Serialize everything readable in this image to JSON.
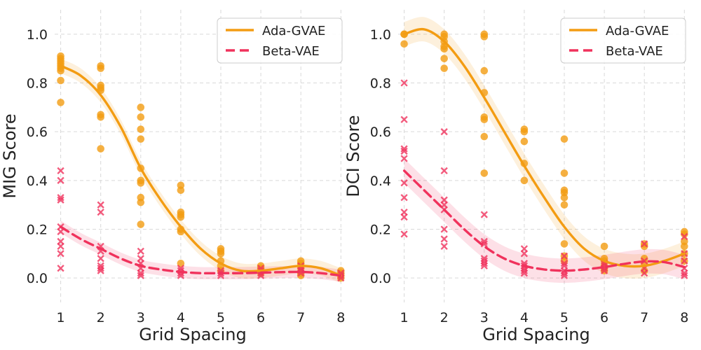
{
  "colors": {
    "ada": "#f39c12",
    "beta": "#f0325c"
  },
  "chart_data": [
    {
      "type": "scatter",
      "title": "",
      "xlabel": "Grid Spacing",
      "ylabel": "MIG Score",
      "xlim": [
        0.85,
        8.1
      ],
      "ylim": [
        -0.1,
        1.1
      ],
      "xticks": [
        1,
        2,
        3,
        4,
        5,
        6,
        7,
        8
      ],
      "yticks": [
        "0.0",
        "0.2",
        "0.4",
        "0.6",
        "0.8",
        "1.0"
      ],
      "grid": true,
      "legend": {
        "position": "top-right",
        "entries": [
          "Ada-GVAE",
          "Beta-VAE"
        ]
      },
      "series": [
        {
          "name": "Ada-GVAE",
          "marker": "circle",
          "points": [
            [
              1,
              0.91
            ],
            [
              1,
              0.9
            ],
            [
              1,
              0.89
            ],
            [
              1,
              0.88
            ],
            [
              1,
              0.87
            ],
            [
              1,
              0.86
            ],
            [
              1,
              0.85
            ],
            [
              1,
              0.81
            ],
            [
              1,
              0.72
            ],
            [
              2,
              0.87
            ],
            [
              2,
              0.86
            ],
            [
              2,
              0.79
            ],
            [
              2,
              0.78
            ],
            [
              2,
              0.77
            ],
            [
              2,
              0.67
            ],
            [
              2,
              0.66
            ],
            [
              2,
              0.53
            ],
            [
              3,
              0.7
            ],
            [
              3,
              0.66
            ],
            [
              3,
              0.61
            ],
            [
              3,
              0.57
            ],
            [
              3,
              0.45
            ],
            [
              3,
              0.4
            ],
            [
              3,
              0.39
            ],
            [
              3,
              0.33
            ],
            [
              3,
              0.31
            ],
            [
              3,
              0.22
            ],
            [
              4,
              0.38
            ],
            [
              4,
              0.36
            ],
            [
              4,
              0.27
            ],
            [
              4,
              0.26
            ],
            [
              4,
              0.25
            ],
            [
              4,
              0.2
            ],
            [
              4,
              0.19
            ],
            [
              4,
              0.06
            ],
            [
              5,
              0.12
            ],
            [
              5,
              0.11
            ],
            [
              5,
              0.1
            ],
            [
              5,
              0.07
            ],
            [
              5,
              0.05
            ],
            [
              5,
              0.03
            ],
            [
              6,
              0.05
            ],
            [
              6,
              0.04
            ],
            [
              6,
              0.03
            ],
            [
              6,
              0.02
            ],
            [
              7,
              0.07
            ],
            [
              7,
              0.06
            ],
            [
              7,
              0.05
            ],
            [
              7,
              0.04
            ],
            [
              7,
              0.02
            ],
            [
              7,
              0.01
            ],
            [
              8,
              0.03
            ],
            [
              8,
              0.02
            ],
            [
              8,
              0.01
            ],
            [
              8,
              0.0
            ]
          ],
          "fit": [
            [
              1,
              0.87
            ],
            [
              1.5,
              0.83
            ],
            [
              2,
              0.75
            ],
            [
              2.5,
              0.62
            ],
            [
              3,
              0.45
            ],
            [
              3.5,
              0.32
            ],
            [
              4,
              0.21
            ],
            [
              4.5,
              0.12
            ],
            [
              5,
              0.06
            ],
            [
              5.5,
              0.03
            ],
            [
              6,
              0.03
            ],
            [
              6.5,
              0.04
            ],
            [
              7,
              0.05
            ],
            [
              7.5,
              0.04
            ],
            [
              8,
              0.01
            ]
          ],
          "band": 0.03
        },
        {
          "name": "Beta-VAE",
          "marker": "x",
          "points": [
            [
              1,
              0.44
            ],
            [
              1,
              0.4
            ],
            [
              1,
              0.33
            ],
            [
              1,
              0.32
            ],
            [
              1,
              0.21
            ],
            [
              1,
              0.19
            ],
            [
              1,
              0.15
            ],
            [
              1,
              0.13
            ],
            [
              1,
              0.1
            ],
            [
              1,
              0.04
            ],
            [
              2,
              0.3
            ],
            [
              2,
              0.27
            ],
            [
              2,
              0.13
            ],
            [
              2,
              0.11
            ],
            [
              2,
              0.08
            ],
            [
              2,
              0.05
            ],
            [
              2,
              0.04
            ],
            [
              2,
              0.03
            ],
            [
              3,
              0.11
            ],
            [
              3,
              0.08
            ],
            [
              3,
              0.06
            ],
            [
              3,
              0.04
            ],
            [
              3,
              0.02
            ],
            [
              3,
              0.01
            ],
            [
              4,
              0.04
            ],
            [
              4,
              0.03
            ],
            [
              4,
              0.02
            ],
            [
              4,
              0.01
            ],
            [
              5,
              0.03
            ],
            [
              5,
              0.02
            ],
            [
              5,
              0.01
            ],
            [
              6,
              0.04
            ],
            [
              6,
              0.03
            ],
            [
              6,
              0.02
            ],
            [
              6,
              0.01
            ],
            [
              7,
              0.05
            ],
            [
              7,
              0.04
            ],
            [
              7,
              0.03
            ],
            [
              7,
              0.02
            ],
            [
              8,
              0.02
            ],
            [
              8,
              0.01
            ],
            [
              8,
              0.0
            ]
          ],
          "fit": [
            [
              1,
              0.21
            ],
            [
              1.5,
              0.16
            ],
            [
              2,
              0.12
            ],
            [
              2.5,
              0.08
            ],
            [
              3,
              0.05
            ],
            [
              3.5,
              0.035
            ],
            [
              4,
              0.025
            ],
            [
              4.5,
              0.02
            ],
            [
              5,
              0.02
            ],
            [
              5.5,
              0.02
            ],
            [
              6,
              0.022
            ],
            [
              6.5,
              0.024
            ],
            [
              7,
              0.025
            ],
            [
              7.5,
              0.02
            ],
            [
              8,
              0.01
            ]
          ],
          "band": 0.025
        }
      ]
    },
    {
      "type": "scatter",
      "title": "",
      "xlabel": "Grid Spacing",
      "ylabel": "DCI Score",
      "xlim": [
        0.85,
        8.1
      ],
      "ylim": [
        -0.1,
        1.1
      ],
      "xticks": [
        1,
        2,
        3,
        4,
        5,
        6,
        7,
        8
      ],
      "yticks": [
        "0.0",
        "0.2",
        "0.4",
        "0.6",
        "0.8",
        "1.0"
      ],
      "grid": true,
      "legend": {
        "position": "top-right",
        "entries": [
          "Ada-GVAE",
          "Beta-VAE"
        ]
      },
      "series": [
        {
          "name": "Ada-GVAE",
          "marker": "circle",
          "points": [
            [
              1,
              1.0
            ],
            [
              1,
              1.0
            ],
            [
              1,
              0.96
            ],
            [
              2,
              1.0
            ],
            [
              2,
              0.99
            ],
            [
              2,
              0.97
            ],
            [
              2,
              0.95
            ],
            [
              2,
              0.94
            ],
            [
              2,
              0.9
            ],
            [
              2,
              0.86
            ],
            [
              3,
              1.0
            ],
            [
              3,
              0.99
            ],
            [
              3,
              0.85
            ],
            [
              3,
              0.76
            ],
            [
              3,
              0.66
            ],
            [
              3,
              0.65
            ],
            [
              3,
              0.58
            ],
            [
              3,
              0.43
            ],
            [
              4,
              0.61
            ],
            [
              4,
              0.6
            ],
            [
              4,
              0.56
            ],
            [
              4,
              0.47
            ],
            [
              4,
              0.4
            ],
            [
              5,
              0.57
            ],
            [
              5,
              0.43
            ],
            [
              5,
              0.36
            ],
            [
              5,
              0.35
            ],
            [
              5,
              0.33
            ],
            [
              5,
              0.3
            ],
            [
              5,
              0.14
            ],
            [
              5,
              0.09
            ],
            [
              5,
              0.07
            ],
            [
              6,
              0.13
            ],
            [
              6,
              0.08
            ],
            [
              6,
              0.07
            ],
            [
              6,
              0.05
            ],
            [
              6,
              0.04
            ],
            [
              6,
              0.03
            ],
            [
              7,
              0.14
            ],
            [
              7,
              0.13
            ],
            [
              7,
              0.08
            ],
            [
              7,
              0.06
            ],
            [
              7,
              0.03
            ],
            [
              8,
              0.19
            ],
            [
              8,
              0.18
            ],
            [
              8,
              0.15
            ],
            [
              8,
              0.13
            ],
            [
              8,
              0.1
            ],
            [
              8,
              0.07
            ]
          ],
          "fit": [
            [
              1,
              1.0
            ],
            [
              1.5,
              1.02
            ],
            [
              2,
              0.97
            ],
            [
              2.5,
              0.87
            ],
            [
              3,
              0.74
            ],
            [
              3.5,
              0.6
            ],
            [
              4,
              0.46
            ],
            [
              4.5,
              0.33
            ],
            [
              5,
              0.21
            ],
            [
              5.5,
              0.12
            ],
            [
              6,
              0.07
            ],
            [
              6.5,
              0.05
            ],
            [
              7,
              0.05
            ],
            [
              7.5,
              0.07
            ],
            [
              8,
              0.1
            ]
          ],
          "band": 0.05
        },
        {
          "name": "Beta-VAE",
          "marker": "x",
          "points": [
            [
              1,
              0.8
            ],
            [
              1,
              0.65
            ],
            [
              1,
              0.53
            ],
            [
              1,
              0.52
            ],
            [
              1,
              0.49
            ],
            [
              1,
              0.39
            ],
            [
              1,
              0.33
            ],
            [
              1,
              0.27
            ],
            [
              1,
              0.25
            ],
            [
              1,
              0.18
            ],
            [
              2,
              0.6
            ],
            [
              2,
              0.44
            ],
            [
              2,
              0.32
            ],
            [
              2,
              0.3
            ],
            [
              2,
              0.28
            ],
            [
              2,
              0.2
            ],
            [
              2,
              0.16
            ],
            [
              2,
              0.13
            ],
            [
              3,
              0.26
            ],
            [
              3,
              0.15
            ],
            [
              3,
              0.14
            ],
            [
              3,
              0.08
            ],
            [
              3,
              0.07
            ],
            [
              3,
              0.06
            ],
            [
              3,
              0.05
            ],
            [
              4,
              0.12
            ],
            [
              4,
              0.1
            ],
            [
              4,
              0.06
            ],
            [
              4,
              0.05
            ],
            [
              4,
              0.04
            ],
            [
              4,
              0.03
            ],
            [
              4,
              0.02
            ],
            [
              5,
              0.09
            ],
            [
              5,
              0.06
            ],
            [
              5,
              0.05
            ],
            [
              5,
              0.03
            ],
            [
              5,
              0.02
            ],
            [
              5,
              0.01
            ],
            [
              6,
              0.06
            ],
            [
              6,
              0.05
            ],
            [
              6,
              0.04
            ],
            [
              6,
              0.03
            ],
            [
              7,
              0.14
            ],
            [
              7,
              0.07
            ],
            [
              7,
              0.04
            ],
            [
              7,
              0.02
            ],
            [
              8,
              0.17
            ],
            [
              8,
              0.1
            ],
            [
              8,
              0.07
            ],
            [
              8,
              0.04
            ],
            [
              8,
              0.02
            ],
            [
              8,
              0.01
            ]
          ],
          "fit": [
            [
              1,
              0.44
            ],
            [
              1.5,
              0.36
            ],
            [
              2,
              0.28
            ],
            [
              2.5,
              0.2
            ],
            [
              3,
              0.13
            ],
            [
              3.5,
              0.08
            ],
            [
              4,
              0.05
            ],
            [
              4.5,
              0.035
            ],
            [
              5,
              0.03
            ],
            [
              5.5,
              0.035
            ],
            [
              6,
              0.045
            ],
            [
              6.5,
              0.058
            ],
            [
              7,
              0.068
            ],
            [
              7.5,
              0.065
            ],
            [
              8,
              0.045
            ]
          ],
          "band": 0.05
        }
      ]
    }
  ]
}
